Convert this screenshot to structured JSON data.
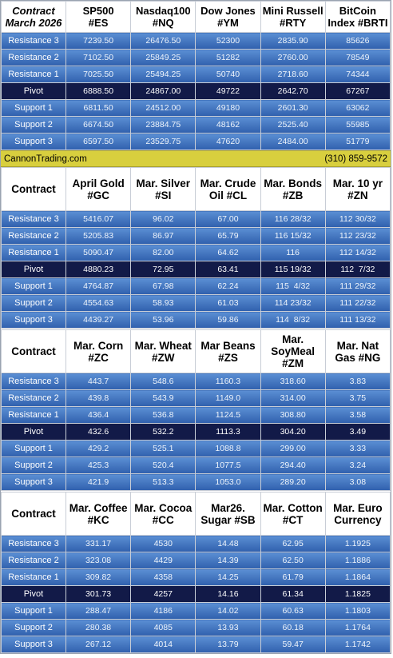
{
  "banner": {
    "site": "CannonTrading.com",
    "phone": "(310) 859-9572"
  },
  "tables": [
    {
      "headers": [
        "Contract\nMarch 2026",
        "SP500\n#ES",
        "Nasdaq100\n#NQ",
        "Dow Jones\n#YM",
        "Mini Russell\n#RTY",
        "BitCoin\nIndex #BRTI"
      ],
      "rows": [
        {
          "label": "Resistance 3",
          "values": [
            "7239.50",
            "26476.50",
            "52300",
            "2835.90",
            "85626"
          ]
        },
        {
          "label": "Resistance 2",
          "values": [
            "7102.50",
            "25849.25",
            "51282",
            "2760.00",
            "78549"
          ]
        },
        {
          "label": "Resistance 1",
          "values": [
            "7025.50",
            "25494.25",
            "50740",
            "2718.60",
            "74344"
          ]
        },
        {
          "label": "Pivot",
          "values": [
            "6888.50",
            "24867.00",
            "49722",
            "2642.70",
            "67267"
          ]
        },
        {
          "label": "Support 1",
          "values": [
            "6811.50",
            "24512.00",
            "49180",
            "2601.30",
            "63062"
          ]
        },
        {
          "label": "Support 2",
          "values": [
            "6674.50",
            "23884.75",
            "48162",
            "2525.40",
            "55985"
          ]
        },
        {
          "label": "Support 3",
          "values": [
            "6597.50",
            "23529.75",
            "47620",
            "2484.00",
            "51779"
          ]
        }
      ]
    },
    {
      "headers": [
        "Contract",
        "April Gold\n#GC",
        "Mar. Silver\n#SI",
        "Mar. Crude\nOil #CL",
        "Mar. Bonds\n#ZB",
        "Mar. 10 yr\n#ZN"
      ],
      "rows": [
        {
          "label": "Resistance 3",
          "values": [
            "5416.07",
            "96.02",
            "67.00",
            "116 28/32",
            "112 30/32"
          ]
        },
        {
          "label": "Resistance 2",
          "values": [
            "5205.83",
            "86.97",
            "65.79",
            "116 15/32",
            "112 23/32"
          ]
        },
        {
          "label": "Resistance 1",
          "values": [
            "5090.47",
            "82.00",
            "64.62",
            "116",
            "112 14/32"
          ]
        },
        {
          "label": "Pivot",
          "values": [
            "4880.23",
            "72.95",
            "63.41",
            "115 19/32",
            "112  7/32"
          ]
        },
        {
          "label": "Support 1",
          "values": [
            "4764.87",
            "67.98",
            "62.24",
            "115  4/32",
            "111 29/32"
          ]
        },
        {
          "label": "Support 2",
          "values": [
            "4554.63",
            "58.93",
            "61.03",
            "114 23/32",
            "111 22/32"
          ]
        },
        {
          "label": "Support 3",
          "values": [
            "4439.27",
            "53.96",
            "59.86",
            "114  8/32",
            "111 13/32"
          ]
        }
      ]
    },
    {
      "headers": [
        "Contract",
        "Mar. Corn\n#ZC",
        "Mar.  Wheat\n#ZW",
        "Mar Beans\n#ZS",
        "Mar.\nSoyMeal\n#ZM",
        "Mar. Nat\nGas #NG"
      ],
      "rows": [
        {
          "label": "Resistance 3",
          "values": [
            "443.7",
            "548.6",
            "1160.3",
            "318.60",
            "3.83"
          ]
        },
        {
          "label": "Resistance 2",
          "values": [
            "439.8",
            "543.9",
            "1149.0",
            "314.00",
            "3.75"
          ]
        },
        {
          "label": "Resistance 1",
          "values": [
            "436.4",
            "536.8",
            "1124.5",
            "308.80",
            "3.58"
          ]
        },
        {
          "label": "Pivot",
          "values": [
            "432.6",
            "532.2",
            "1113.3",
            "304.20",
            "3.49"
          ]
        },
        {
          "label": "Support 1",
          "values": [
            "429.2",
            "525.1",
            "1088.8",
            "299.00",
            "3.33"
          ]
        },
        {
          "label": "Support 2",
          "values": [
            "425.3",
            "520.4",
            "1077.5",
            "294.40",
            "3.24"
          ]
        },
        {
          "label": "Support 3",
          "values": [
            "421.9",
            "513.3",
            "1053.0",
            "289.20",
            "3.08"
          ]
        }
      ]
    },
    {
      "headers": [
        "Contract",
        "Mar. Coffee\n#KC",
        "Mar. Cocoa\n#CC",
        "Mar26.\nSugar #SB",
        "Mar. Cotton\n#CT",
        "Mar. Euro\nCurrency"
      ],
      "rows": [
        {
          "label": "Resistance 3",
          "values": [
            "331.17",
            "4530",
            "14.48",
            "62.95",
            "1.1925"
          ]
        },
        {
          "label": "Resistance 2",
          "values": [
            "323.08",
            "4429",
            "14.39",
            "62.50",
            "1.1886"
          ]
        },
        {
          "label": "Resistance 1",
          "values": [
            "309.82",
            "4358",
            "14.25",
            "61.79",
            "1.1864"
          ]
        },
        {
          "label": "Pivot",
          "values": [
            "301.73",
            "4257",
            "14.16",
            "61.34",
            "1.1825"
          ]
        },
        {
          "label": "Support 1",
          "values": [
            "288.47",
            "4186",
            "14.02",
            "60.63",
            "1.1803"
          ]
        },
        {
          "label": "Support 2",
          "values": [
            "280.38",
            "4085",
            "13.93",
            "60.18",
            "1.1764"
          ]
        },
        {
          "label": "Support 3",
          "values": [
            "267.12",
            "4014",
            "13.79",
            "59.47",
            "1.1742"
          ]
        }
      ]
    }
  ]
}
